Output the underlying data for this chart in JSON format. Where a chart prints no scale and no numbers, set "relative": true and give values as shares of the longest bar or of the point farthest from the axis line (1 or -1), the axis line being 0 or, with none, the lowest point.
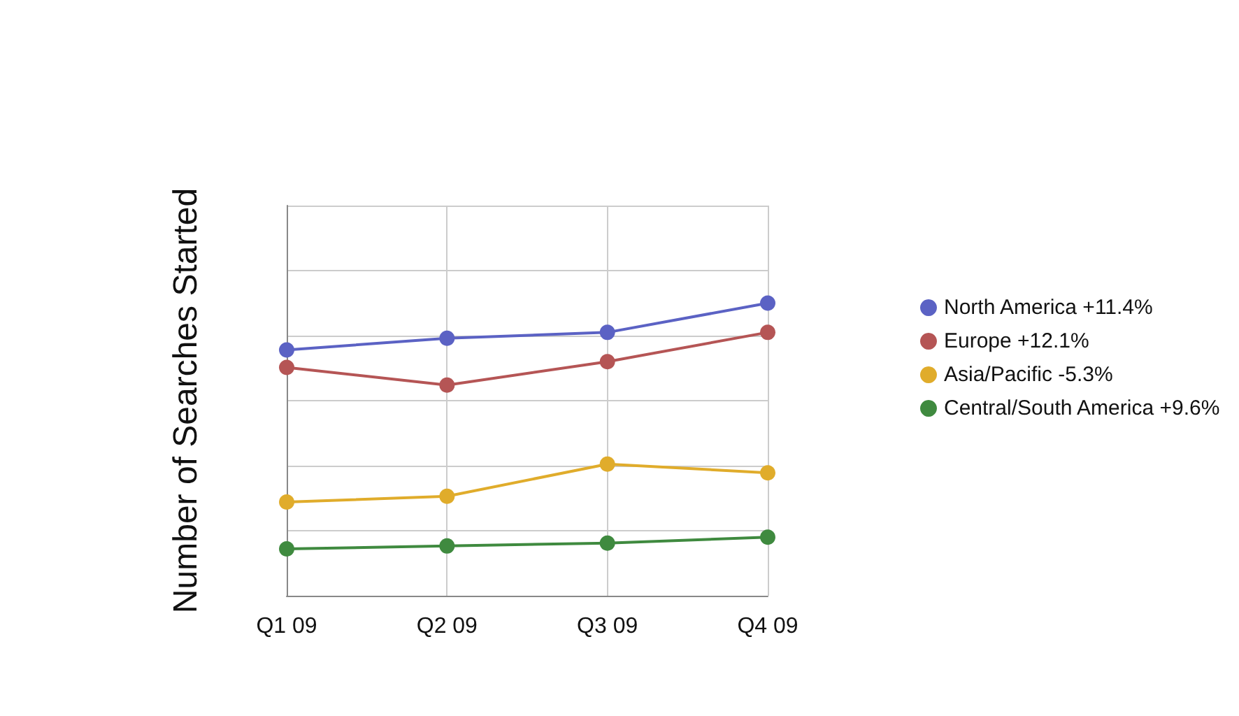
{
  "chart_data": {
    "type": "line",
    "relative": true,
    "ylabel": "Number of Searches Started",
    "categories": [
      "Q1 09",
      "Q2 09",
      "Q3 09",
      "Q4 09"
    ],
    "series": [
      {
        "name": "North America +11.4%",
        "color": "#5b62c4",
        "values": [
          0.84,
          0.88,
          0.9,
          1
        ]
      },
      {
        "name": "Europe +12.1%",
        "color": "#b55555",
        "values": [
          0.78,
          0.72,
          0.8,
          0.9
        ]
      },
      {
        "name": "Asia/Pacific -5.3%",
        "color": "#e0ac2b",
        "values": [
          0.32,
          0.34,
          0.45,
          0.42
        ]
      },
      {
        "name": "Central/South America +9.6%",
        "color": "#3f8a3f",
        "values": [
          0.16,
          0.17,
          0.18,
          0.2
        ]
      }
    ],
    "grid": true,
    "legend": "right",
    "marker": "circle",
    "line_style": "solid"
  }
}
